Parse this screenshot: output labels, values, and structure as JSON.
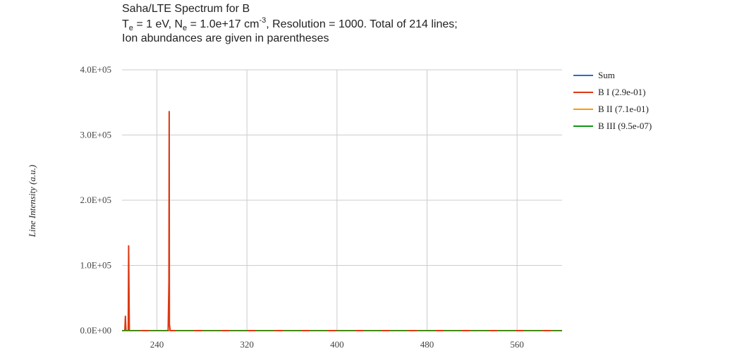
{
  "chart_data": {
    "type": "line",
    "title_line1": "Saha/LTE Spectrum for B",
    "title_line2": {
      "t_main": "T",
      "t_sub": "e",
      "t_rest": " = 1 eV, N",
      "n_sub": "e",
      "n_rest": " = 1.0e+17 cm",
      "exp": "-3",
      "tail": ", Resolution = 1000. Total of 214 lines;"
    },
    "title_line3": "Ion abundances are given in parentheses",
    "xlabel": "",
    "ylabel": "Line Intensity (a.u.)",
    "xlim": [
      209,
      600
    ],
    "ylim": [
      0,
      400000
    ],
    "x_ticks": [
      240,
      320,
      400,
      480,
      560
    ],
    "x_tick_labels": [
      "240",
      "320",
      "400",
      "480",
      "560"
    ],
    "y_ticks": [
      0,
      100000,
      200000,
      300000,
      400000
    ],
    "y_tick_labels": [
      "0.0E+00",
      "1.0E+05",
      "2.0E+05",
      "3.0E+05",
      "4.0E+05"
    ],
    "grid": true,
    "legend_position": "right",
    "series": [
      {
        "name": "Sum",
        "color": "#3366cc",
        "x": [
          209,
          600
        ],
        "y": [
          0,
          0
        ],
        "dashed": true
      },
      {
        "name": "B I (2.9e-01)",
        "color": "#dc3912",
        "x": [
          209,
          211.5,
          212,
          212.5,
          214.5,
          214.9,
          215.2,
          215.5,
          250,
          250.7,
          250.9,
          251.1,
          251.8,
          600
        ],
        "y": [
          0,
          0,
          22000,
          0,
          0,
          130000,
          65000,
          0,
          0,
          75000,
          336000,
          10000,
          0,
          0
        ]
      },
      {
        "name": "B II (7.1e-01)",
        "color": "#ff9900",
        "x": [
          209,
          600
        ],
        "y": [
          0,
          0
        ],
        "dashed": true
      },
      {
        "name": "B III (9.5e-07)",
        "color": "#109618",
        "x": [
          209,
          600
        ],
        "y": [
          0,
          0
        ],
        "dashed": true
      }
    ]
  }
}
